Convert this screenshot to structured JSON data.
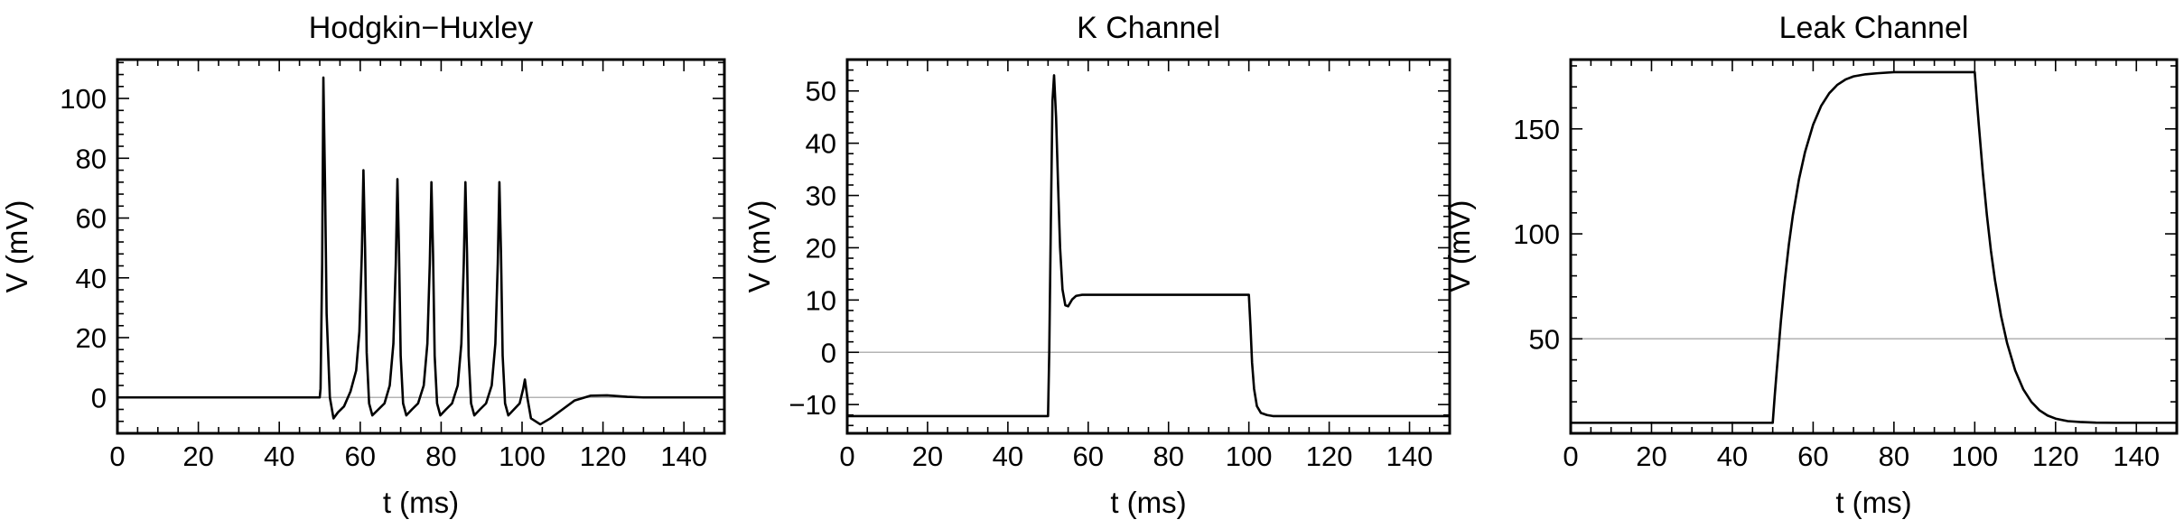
{
  "chart_data": [
    {
      "type": "line",
      "title": "Hodgkin−Huxley",
      "xlabel": "t (ms)",
      "ylabel": "V (mV)",
      "xlim": [
        0,
        150
      ],
      "ylim": [
        -12,
        113
      ],
      "xticks": [
        0,
        20,
        40,
        60,
        80,
        100,
        120,
        140
      ],
      "yticks": [
        0,
        20,
        40,
        60,
        80,
        100
      ],
      "reference_line_y": 0,
      "grid": false,
      "legend": "none",
      "line_color": "#000000",
      "reference_line_color": "#b4b4b4",
      "series": [
        {
          "x": [
            0,
            50,
            50.2,
            50.6,
            50.9,
            51.3,
            51.7,
            52.5,
            53.4,
            54.5,
            56,
            57.6,
            59,
            59.8,
            60.4,
            60.8,
            61.2,
            61.6,
            62.2,
            63,
            64.5,
            66,
            67.3,
            68.2,
            68.8,
            69.2,
            69.6,
            70,
            70.6,
            71.4,
            72.8,
            74.3,
            75.7,
            76.6,
            77.2,
            77.6,
            78,
            78.4,
            79,
            79.8,
            81.2,
            82.7,
            84.1,
            85,
            85.6,
            86,
            86.4,
            86.8,
            87.4,
            88.2,
            89.6,
            91.1,
            92.5,
            93.4,
            94,
            94.4,
            94.8,
            95.2,
            95.8,
            96.6,
            98,
            99.4,
            100.3,
            100.7,
            101.3,
            102.2,
            104.5,
            107,
            110,
            113,
            117,
            121,
            126,
            130,
            150
          ],
          "y": [
            0,
            0,
            3,
            45,
            107,
            72,
            28,
            0,
            -7,
            -5,
            -3,
            2,
            9,
            22,
            48,
            76,
            50,
            15,
            -2,
            -6,
            -4,
            -2,
            4,
            18,
            45,
            73,
            48,
            14,
            -2,
            -6,
            -4,
            -2,
            4,
            18,
            45,
            72,
            48,
            14,
            -2,
            -6,
            -4,
            -2,
            4,
            18,
            45,
            72,
            48,
            14,
            -2,
            -6,
            -4,
            -2,
            4,
            18,
            45,
            72,
            48,
            14,
            -2,
            -6,
            -4,
            -2,
            3,
            6,
            0,
            -7,
            -9,
            -7,
            -4,
            -1,
            0.6,
            0.7,
            0.2,
            0,
            0
          ]
        }
      ]
    },
    {
      "type": "line",
      "title": "K Channel",
      "xlabel": "t (ms)",
      "ylabel": "V (mV)",
      "xlim": [
        0,
        150
      ],
      "ylim": [
        -15.5,
        56
      ],
      "xticks": [
        0,
        20,
        40,
        60,
        80,
        100,
        120,
        140
      ],
      "yticks": [
        -10,
        0,
        10,
        20,
        30,
        40,
        50
      ],
      "reference_line_y": 0,
      "grid": false,
      "legend": "none",
      "line_color": "#000000",
      "reference_line_color": "#b4b4b4",
      "series": [
        {
          "x": [
            0,
            50,
            50.3,
            50.7,
            51.1,
            51.5,
            52,
            52.5,
            53,
            53.6,
            54.3,
            55,
            56,
            57,
            58.5,
            60,
            62,
            65,
            70,
            80,
            90,
            100,
            100.4,
            100.8,
            101.3,
            102,
            103,
            104.5,
            106,
            110,
            150
          ],
          "y": [
            -12.2,
            -12.2,
            0,
            25,
            48,
            53,
            45,
            32,
            20,
            12,
            9,
            8.8,
            10.1,
            10.8,
            11,
            11,
            11,
            11,
            11,
            11,
            11,
            11,
            5,
            -2,
            -7,
            -10.3,
            -11.6,
            -12,
            -12.2,
            -12.2,
            -12.2
          ]
        }
      ]
    },
    {
      "type": "line",
      "title": "Leak Channel",
      "xlabel": "t (ms)",
      "ylabel": "V (mV)",
      "xlim": [
        0,
        150
      ],
      "ylim": [
        5,
        183
      ],
      "xticks": [
        0,
        20,
        40,
        60,
        80,
        100,
        120,
        140
      ],
      "yticks": [
        50,
        100,
        150
      ],
      "reference_line_y": 50,
      "grid": false,
      "legend": "none",
      "line_color": "#000000",
      "reference_line_color": "#b4b4b4",
      "series": [
        {
          "x": [
            0,
            50,
            50.5,
            51,
            52,
            53,
            54,
            55,
            56.5,
            58,
            60,
            62,
            64,
            66,
            68,
            70,
            73,
            76,
            80,
            85,
            90,
            95,
            100,
            100.5,
            101,
            102,
            103,
            104,
            105,
            106.5,
            108,
            110,
            112,
            114,
            116,
            118,
            120,
            123,
            126,
            130,
            135,
            140,
            150
          ],
          "y": [
            10,
            10,
            23,
            35,
            58,
            78,
            95,
            109,
            126,
            139,
            152,
            161,
            167,
            171,
            173.5,
            175,
            176,
            176.5,
            177,
            177,
            177,
            177,
            177,
            164,
            152,
            129,
            109,
            92,
            78,
            61,
            48,
            35,
            26,
            20,
            16,
            13.5,
            12,
            10.8,
            10.4,
            10.1,
            10,
            10,
            10
          ]
        }
      ]
    }
  ]
}
